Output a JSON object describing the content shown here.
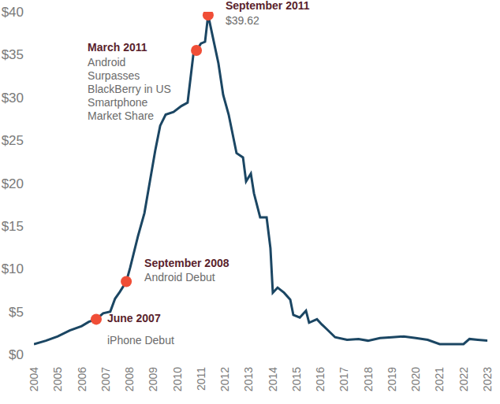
{
  "chart_data": {
    "type": "line",
    "color": "#1b4663",
    "grid": false,
    "x": [
      2004.0,
      2004.5,
      2005.0,
      2005.5,
      2006.0,
      2006.3,
      2006.61,
      2006.9,
      2007.2,
      2007.4,
      2007.6,
      2007.87,
      2008.03,
      2008.36,
      2008.63,
      2008.86,
      2009.09,
      2009.29,
      2009.52,
      2009.85,
      2010.18,
      2010.44,
      2010.68,
      2010.81,
      2011.0,
      2011.17,
      2011.3,
      2011.5,
      2011.73,
      2011.93,
      2012.16,
      2012.49,
      2012.76,
      2012.89,
      2013.09,
      2013.22,
      2013.48,
      2013.75,
      2013.91,
      2014.01,
      2014.21,
      2014.48,
      2014.74,
      2014.87,
      2015.14,
      2015.4,
      2015.53,
      2015.86,
      2016.06,
      2016.29,
      2016.62,
      2017.12,
      2017.6,
      2018.0,
      2018.5,
      2019.0,
      2019.5,
      2020.0,
      2020.5,
      2021.0,
      2021.5,
      2022.0,
      2022.25,
      2022.6,
      2023.0
    ],
    "values": [
      1.2,
      1.6,
      2.1,
      2.8,
      3.3,
      3.8,
      4.1,
      4.8,
      5.0,
      6.5,
      7.3,
      8.5,
      10.1,
      13.8,
      16.5,
      20.2,
      23.9,
      26.7,
      28.0,
      28.3,
      29.0,
      29.4,
      35.0,
      35.5,
      36.3,
      36.5,
      39.62,
      37.0,
      34.0,
      30.3,
      28.0,
      23.5,
      23.0,
      20.2,
      21.1,
      18.8,
      16.0,
      16.0,
      12.4,
      7.2,
      7.8,
      7.2,
      6.4,
      4.6,
      4.3,
      5.1,
      3.7,
      4.1,
      3.5,
      2.9,
      2.0,
      1.7,
      1.8,
      1.6,
      1.9,
      2.0,
      2.1,
      1.9,
      1.7,
      1.2,
      1.2,
      1.2,
      1.8,
      1.7,
      1.6
    ],
    "xlim": [
      2004,
      2023
    ],
    "xticks": [
      2004,
      2005,
      2006,
      2007,
      2008,
      2009,
      2010,
      2011,
      2012,
      2013,
      2014,
      2015,
      2016,
      2017,
      2018,
      2019,
      2020,
      2021,
      2022,
      2023
    ],
    "ylim": [
      0,
      40
    ],
    "yticks": [
      {
        "value": 0,
        "label": "$0"
      },
      {
        "value": 5,
        "label": "$5"
      },
      {
        "value": 10,
        "label": "$10"
      },
      {
        "value": 15,
        "label": "$15"
      },
      {
        "value": 20,
        "label": "$20"
      },
      {
        "value": 25,
        "label": "$25"
      },
      {
        "value": 30,
        "label": "$30"
      },
      {
        "value": 35,
        "label": "$35"
      },
      {
        "value": 40,
        "label": "$40"
      }
    ],
    "annotations": [
      {
        "title": "June 2007",
        "lines": [
          "iPhone Debut"
        ],
        "x": 2006.61,
        "y": 4.1
      },
      {
        "title": "September 2008",
        "lines": [
          "Android Debut"
        ],
        "x": 2007.87,
        "y": 8.5
      },
      {
        "title": "March 2011",
        "lines": [
          "Android",
          "Surpasses",
          "BlackBerry in US",
          "Smartphone",
          "Market Share"
        ],
        "x": 2010.81,
        "y": 35.5
      },
      {
        "title": "September 2011",
        "lines": [
          "$39.62"
        ],
        "x": 2011.3,
        "y": 39.62
      }
    ]
  }
}
